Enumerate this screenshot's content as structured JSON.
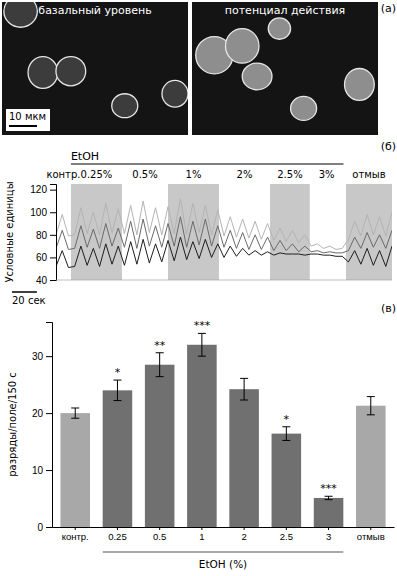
{
  "panel_a": {
    "label": "(а)",
    "images": [
      {
        "title": "базальный уровень"
      },
      {
        "title": "потенциал действия"
      }
    ],
    "scale_bar": {
      "value": 10,
      "label": "10 мкм"
    }
  },
  "chart_data": [
    {
      "type": "line",
      "panel_label": "(б)",
      "y_label": "Условные единицы",
      "treatment_label": "EtOH",
      "tick_labels": "y",
      "x": [
        0,
        5,
        10,
        15,
        20,
        25,
        30,
        35,
        40,
        45,
        50,
        55,
        60,
        65,
        70,
        75,
        80,
        85,
        90,
        95,
        100,
        105,
        110,
        115,
        120,
        125,
        130,
        135,
        140,
        145,
        150,
        155,
        160,
        165,
        170,
        175,
        180,
        185,
        190,
        195,
        200,
        205,
        210,
        215,
        220,
        225,
        230,
        235,
        240,
        245,
        250,
        255,
        260,
        265,
        270
      ],
      "xlim": [
        0,
        270
      ],
      "ylim": [
        40,
        125
      ],
      "yticks": [
        40,
        60,
        80,
        100,
        120
      ],
      "segments": [
        {
          "label": "контр.",
          "start": 0,
          "end": 12,
          "color": "#ffffff"
        },
        {
          "label": "0.25%",
          "start": 12,
          "end": 53,
          "color": "#c8c8c8"
        },
        {
          "label": "0.5%",
          "start": 53,
          "end": 90,
          "color": "#ffffff"
        },
        {
          "label": "1%",
          "start": 90,
          "end": 131,
          "color": "#c8c8c8"
        },
        {
          "label": "2%",
          "start": 131,
          "end": 172,
          "color": "#ffffff"
        },
        {
          "label": "2.5%",
          "start": 172,
          "end": 204,
          "color": "#c8c8c8"
        },
        {
          "label": "3%",
          "start": 204,
          "end": 231,
          "color": "#ffffff"
        },
        {
          "label": "отмыв",
          "start": 233,
          "end": 270,
          "color": "#c8c8c8"
        }
      ],
      "scale_bar": {
        "value": 20,
        "label": "20 сек"
      },
      "series": [
        {
          "color": "#b4b4b4",
          "values": [
            80,
            98,
            79,
            80,
            104,
            81,
            100,
            80,
            108,
            82,
            103,
            81,
            106,
            80,
            110,
            82,
            104,
            80,
            105,
            81,
            112,
            80,
            108,
            82,
            106,
            80,
            102,
            79,
            96,
            78,
            94,
            77,
            92,
            76,
            90,
            75,
            86,
            74,
            84,
            73,
            80,
            70,
            72,
            68,
            70,
            67,
            68,
            76,
            92,
            79,
            98,
            80,
            96,
            79,
            100
          ]
        },
        {
          "color": "#6a6a6a",
          "values": [
            68,
            84,
            67,
            68,
            88,
            69,
            85,
            68,
            90,
            70,
            86,
            69,
            92,
            68,
            94,
            70,
            88,
            69,
            90,
            70,
            96,
            69,
            92,
            71,
            94,
            70,
            88,
            69,
            84,
            68,
            82,
            67,
            80,
            67,
            78,
            66,
            75,
            66,
            72,
            65,
            70,
            65,
            66,
            64,
            65,
            64,
            64,
            66,
            78,
            68,
            82,
            69,
            80,
            68,
            84
          ]
        },
        {
          "color": "#1e1e1e",
          "values": [
            52,
            66,
            51,
            52,
            70,
            53,
            68,
            52,
            72,
            54,
            70,
            53,
            74,
            54,
            76,
            55,
            72,
            56,
            75,
            57,
            78,
            58,
            74,
            59,
            76,
            60,
            72,
            60,
            70,
            61,
            68,
            62,
            66,
            62,
            65,
            62,
            64,
            63,
            63,
            63,
            62,
            63,
            63,
            62,
            62,
            61,
            61,
            56,
            66,
            54,
            68,
            53,
            66,
            52,
            70
          ]
        }
      ]
    },
    {
      "type": "bar",
      "panel_label": "(в)",
      "y_label": "разряды/поле/150 с",
      "x_label": "EtOH (%)",
      "categories": [
        "контр.",
        "0.25",
        "0.5",
        "1",
        "2",
        "2.5",
        "3",
        "отмыв"
      ],
      "values": [
        20,
        24,
        28.5,
        32,
        24.2,
        16.4,
        5.1,
        21.3
      ],
      "errors": [
        0.9,
        1.8,
        2.1,
        2.0,
        1.9,
        1.2,
        0.3,
        1.6
      ],
      "significance": [
        null,
        "*",
        "**",
        "***",
        null,
        "*",
        "***",
        null
      ],
      "colors": [
        "#a8a8a8",
        "#707070",
        "#707070",
        "#707070",
        "#707070",
        "#707070",
        "#707070",
        "#a8a8a8"
      ],
      "ylim": [
        0,
        36
      ],
      "yticks": [
        0,
        10,
        20,
        30
      ]
    }
  ]
}
